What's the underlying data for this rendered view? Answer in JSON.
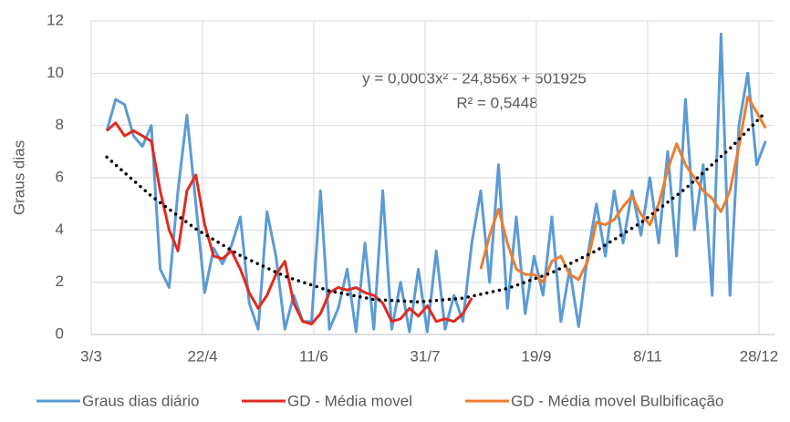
{
  "chart_data": {
    "type": "line",
    "y_label": "Graus dias",
    "annotations": [
      "y = 0,0003x² - 24,856x + 501925",
      "R² = 0,5448"
    ],
    "xlim": [
      0,
      307
    ],
    "xticks": [
      {
        "value": 0,
        "label": "3/3"
      },
      {
        "value": 50,
        "label": "22/4"
      },
      {
        "value": 100,
        "label": "11/6"
      },
      {
        "value": 150,
        "label": "31/7"
      },
      {
        "value": 200,
        "label": "19/9"
      },
      {
        "value": 250,
        "label": "8/11"
      },
      {
        "value": 300,
        "label": "28/12"
      }
    ],
    "ylim": [
      0,
      12
    ],
    "yticks": [
      0,
      2,
      4,
      6,
      8,
      10,
      12
    ],
    "grid": true,
    "x": [
      7,
      11,
      15,
      19,
      23,
      27,
      31,
      35,
      39,
      43,
      47,
      51,
      55,
      59,
      63,
      67,
      71,
      75,
      79,
      83,
      87,
      91,
      95,
      99,
      103,
      107,
      111,
      115,
      119,
      123,
      127,
      131,
      135,
      139,
      143,
      147,
      151,
      155,
      159,
      163,
      167,
      171,
      175,
      179,
      183,
      187,
      191,
      195,
      199,
      203,
      207,
      211,
      215,
      219,
      223,
      227,
      231,
      235,
      239,
      243,
      247,
      251,
      255,
      259,
      263,
      267,
      271,
      275,
      279,
      283,
      287,
      291,
      295,
      299,
      303
    ],
    "series": [
      {
        "name": "Graus dias diário",
        "color": "#5b9bd5",
        "values": [
          7.8,
          9.0,
          8.8,
          7.6,
          7.2,
          8.0,
          2.5,
          1.8,
          5.5,
          8.4,
          5.0,
          1.6,
          3.3,
          2.7,
          3.4,
          4.5,
          1.2,
          0.2,
          4.7,
          3.0,
          0.2,
          1.5,
          0.5,
          0.5,
          5.5,
          0.2,
          1.0,
          2.5,
          0.1,
          3.5,
          0.2,
          5.5,
          0.2,
          2.0,
          0.1,
          2.5,
          0.1,
          3.2,
          0.2,
          1.5,
          0.5,
          3.5,
          5.5,
          2.0,
          6.5,
          1.0,
          4.5,
          0.8,
          3.0,
          1.5,
          4.5,
          0.5,
          2.5,
          0.3,
          3.0,
          5.0,
          3.0,
          5.5,
          3.5,
          5.5,
          3.8,
          6.0,
          3.5,
          7.0,
          3.0,
          9.0,
          4.0,
          6.5,
          1.5,
          11.5,
          1.5,
          8.0,
          10.0,
          6.5,
          7.4
        ]
      },
      {
        "name": "GD - Média movel",
        "color": "#e02b20",
        "values": [
          7.8,
          8.1,
          7.6,
          7.8,
          7.6,
          7.4,
          5.5,
          4.0,
          3.2,
          5.5,
          6.1,
          4.2,
          3.0,
          2.9,
          3.2,
          2.5,
          1.6,
          1.0,
          1.5,
          2.3,
          2.8,
          1.2,
          0.5,
          0.4,
          0.8,
          1.6,
          1.8,
          1.7,
          1.8,
          1.6,
          1.5,
          1.2,
          0.5,
          0.6,
          1.0,
          0.7,
          1.1,
          0.5,
          0.6,
          0.5,
          0.8,
          1.4,
          null,
          null,
          null,
          null,
          null,
          null,
          null,
          null,
          null,
          null,
          null,
          null,
          null,
          null,
          null,
          null,
          null,
          null,
          null,
          null,
          null,
          null,
          null,
          null,
          null,
          null,
          null,
          null,
          null,
          null,
          null,
          null,
          null
        ]
      },
      {
        "name": "GD - Média movel Bulbificação",
        "color": "#ed7d31",
        "values": [
          null,
          null,
          null,
          null,
          null,
          null,
          null,
          null,
          null,
          null,
          null,
          null,
          null,
          null,
          null,
          null,
          null,
          null,
          null,
          null,
          null,
          null,
          null,
          null,
          null,
          null,
          null,
          null,
          null,
          null,
          null,
          null,
          null,
          null,
          null,
          null,
          null,
          null,
          null,
          null,
          null,
          null,
          2.5,
          3.8,
          4.8,
          3.5,
          2.5,
          2.3,
          2.3,
          2.0,
          2.8,
          3.0,
          2.3,
          2.1,
          2.8,
          4.3,
          4.2,
          4.4,
          4.9,
          5.3,
          4.6,
          4.2,
          5.0,
          6.3,
          7.3,
          6.5,
          6.0,
          5.5,
          5.2,
          4.7,
          5.5,
          7.2,
          9.1,
          8.5,
          7.9
        ]
      },
      {
        "color": "#000000",
        "dotted": true,
        "x": [
          7,
          27,
          47,
          67,
          87,
          107,
          127,
          147,
          167,
          187,
          207,
          227,
          247,
          267,
          287,
          303
        ],
        "values": [
          6.79,
          5.3,
          4.04,
          3.02,
          2.23,
          1.67,
          1.34,
          1.25,
          1.39,
          1.76,
          2.37,
          3.21,
          4.28,
          5.58,
          7.12,
          8.51
        ]
      }
    ]
  }
}
